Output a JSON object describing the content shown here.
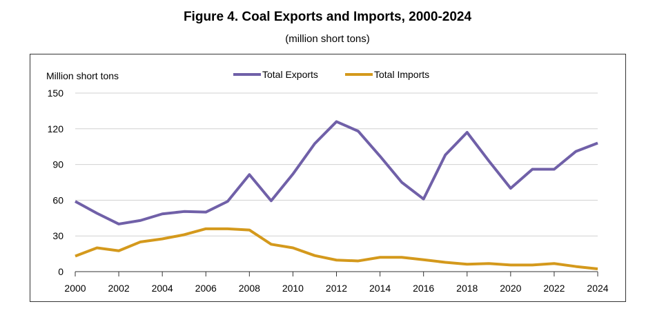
{
  "chart_data": {
    "type": "line",
    "title": "Figure 4. Coal Exports and Imports, 2000-2024",
    "subtitle": "(million short tons)",
    "ylabel": "Million short tons",
    "xlabel": "",
    "ylim": [
      0,
      150
    ],
    "yticks": [
      0,
      30,
      60,
      90,
      120,
      150
    ],
    "xlim": [
      2000,
      2024
    ],
    "xticks": [
      2000,
      2002,
      2004,
      2006,
      2008,
      2010,
      2012,
      2014,
      2016,
      2018,
      2020,
      2022,
      2024
    ],
    "grid": "horizontal",
    "legend": "top-center",
    "x": [
      2000,
      2001,
      2002,
      2003,
      2004,
      2005,
      2006,
      2007,
      2008,
      2009,
      2010,
      2011,
      2012,
      2013,
      2014,
      2015,
      2016,
      2017,
      2018,
      2019,
      2020,
      2021,
      2022,
      2023,
      2024
    ],
    "series": [
      {
        "name": "Total Exports",
        "color": "#7060A8",
        "values": [
          59,
          49,
          40,
          43,
          48.5,
          50.5,
          50,
          59,
          81.5,
          59.5,
          82,
          107.5,
          126,
          118,
          97,
          75,
          61,
          98,
          117,
          93,
          70,
          86,
          86,
          101,
          108
        ]
      },
      {
        "name": "Total Imports",
        "color": "#D4991C",
        "values": [
          13,
          20,
          17.5,
          25,
          27.5,
          31,
          36,
          36,
          35,
          23,
          20,
          13.5,
          9.7,
          9,
          12,
          12,
          10,
          7.8,
          6.2,
          6.8,
          5.6,
          5.6,
          6.8,
          4.3,
          2.3
        ]
      }
    ]
  }
}
